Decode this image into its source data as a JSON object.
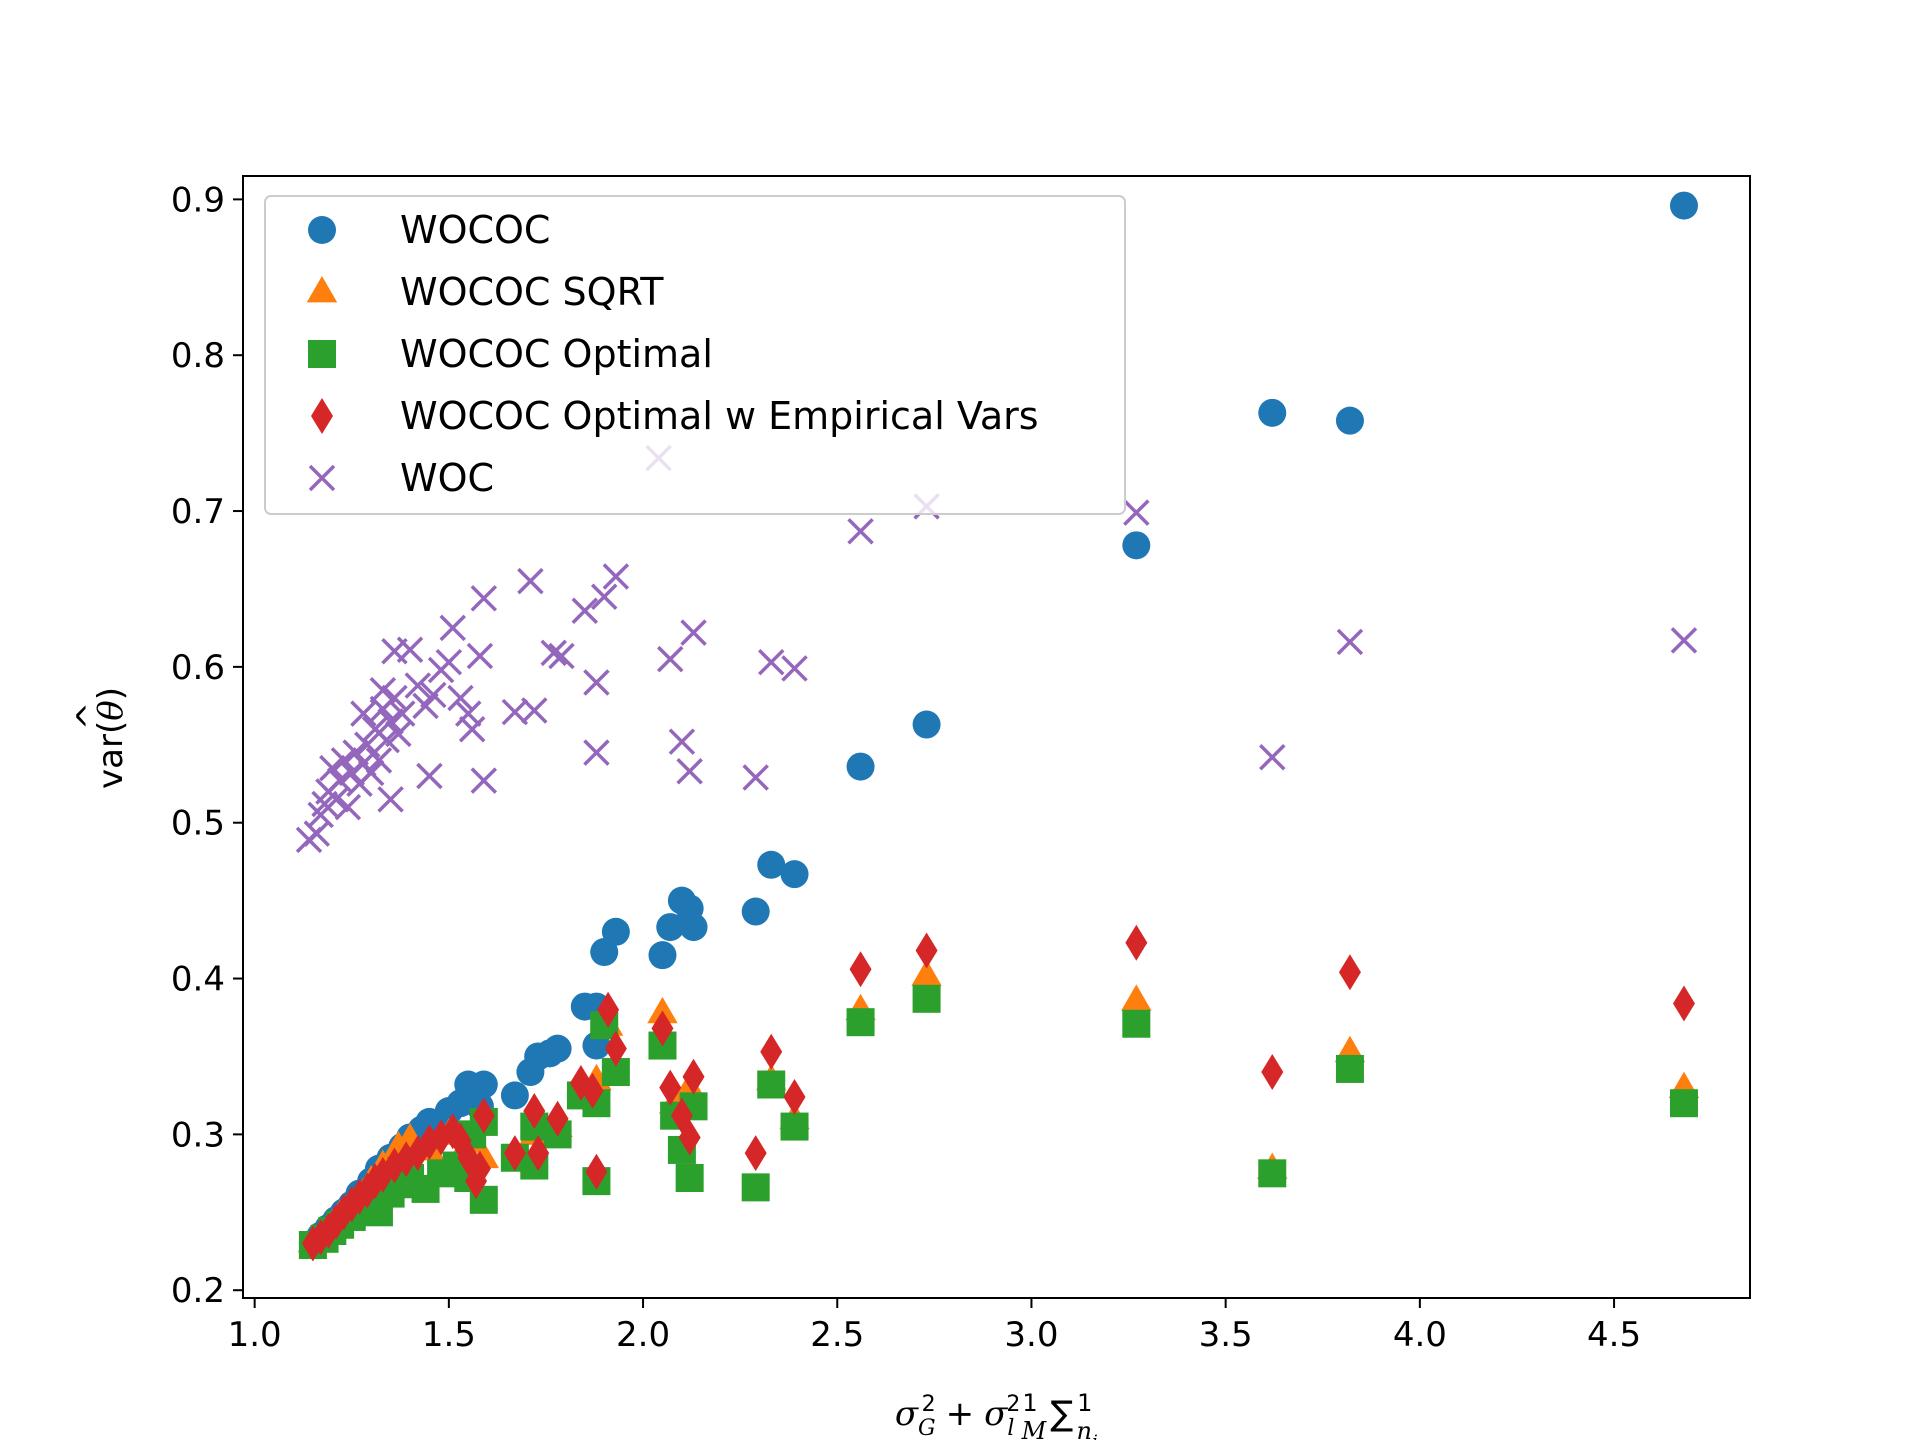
{
  "chart_data": {
    "type": "scatter",
    "xlabel": {
      "sigma": "σ",
      "sub_G": "G",
      "sup_2": "2",
      "plus": "+",
      "sub_l": "l",
      "one": "1",
      "M": "M",
      "sum": "∑",
      "n": "n",
      "sub_j": "j"
    },
    "ylabel": {
      "prefix": "var(",
      "theta": "θ",
      "hat": "^",
      "suffix": ")"
    },
    "xlim": [
      0.97,
      4.85
    ],
    "ylim": [
      0.195,
      0.915
    ],
    "xticks": [
      "1.0",
      "1.5",
      "2.0",
      "2.5",
      "3.0",
      "3.5",
      "4.0",
      "4.5"
    ],
    "xtick_values": [
      1.0,
      1.5,
      2.0,
      2.5,
      3.0,
      3.5,
      4.0,
      4.5
    ],
    "yticks": [
      "0.2",
      "0.3",
      "0.4",
      "0.5",
      "0.6",
      "0.7",
      "0.8",
      "0.9"
    ],
    "ytick_values": [
      0.2,
      0.3,
      0.4,
      0.5,
      0.6,
      0.7,
      0.8,
      0.9
    ],
    "grid": false,
    "legend_position": "top-left",
    "series": [
      {
        "name": "WOCOC",
        "marker": "circle",
        "color": "#1f77b4",
        "points": [
          [
            1.15,
            0.23
          ],
          [
            1.17,
            0.235
          ],
          [
            1.19,
            0.24
          ],
          [
            1.21,
            0.245
          ],
          [
            1.23,
            0.25
          ],
          [
            1.25,
            0.255
          ],
          [
            1.27,
            0.262
          ],
          [
            1.3,
            0.27
          ],
          [
            1.32,
            0.278
          ],
          [
            1.35,
            0.285
          ],
          [
            1.38,
            0.292
          ],
          [
            1.4,
            0.298
          ],
          [
            1.43,
            0.303
          ],
          [
            1.45,
            0.308
          ],
          [
            1.48,
            0.305
          ],
          [
            1.5,
            0.315
          ],
          [
            1.53,
            0.32
          ],
          [
            1.55,
            0.332
          ],
          [
            1.59,
            0.332
          ],
          [
            1.58,
            0.318
          ],
          [
            1.67,
            0.325
          ],
          [
            1.71,
            0.34
          ],
          [
            1.73,
            0.35
          ],
          [
            1.76,
            0.352
          ],
          [
            1.78,
            0.355
          ],
          [
            1.85,
            0.382
          ],
          [
            1.88,
            0.382
          ],
          [
            1.88,
            0.357
          ],
          [
            1.9,
            0.417
          ],
          [
            1.93,
            0.43
          ],
          [
            2.05,
            0.415
          ],
          [
            2.07,
            0.433
          ],
          [
            2.1,
            0.45
          ],
          [
            2.12,
            0.445
          ],
          [
            2.13,
            0.433
          ],
          [
            2.29,
            0.443
          ],
          [
            2.33,
            0.473
          ],
          [
            2.39,
            0.467
          ],
          [
            2.56,
            0.536
          ],
          [
            2.73,
            0.563
          ],
          [
            3.27,
            0.678
          ],
          [
            3.62,
            0.763
          ],
          [
            3.82,
            0.758
          ],
          [
            4.68,
            0.896
          ]
        ]
      },
      {
        "name": "WOCOC SQRT",
        "marker": "triangle",
        "color": "#ff7f0e",
        "points": [
          [
            1.15,
            0.231
          ],
          [
            1.18,
            0.236
          ],
          [
            1.2,
            0.242
          ],
          [
            1.22,
            0.248
          ],
          [
            1.25,
            0.254
          ],
          [
            1.28,
            0.262
          ],
          [
            1.3,
            0.27
          ],
          [
            1.33,
            0.28
          ],
          [
            1.37,
            0.292
          ],
          [
            1.4,
            0.297
          ],
          [
            1.45,
            0.29
          ],
          [
            1.5,
            0.3
          ],
          [
            1.55,
            0.295
          ],
          [
            1.59,
            0.285
          ],
          [
            1.72,
            0.3
          ],
          [
            1.78,
            0.305
          ],
          [
            1.88,
            0.335
          ],
          [
            1.91,
            0.37
          ],
          [
            2.05,
            0.378
          ],
          [
            2.08,
            0.32
          ],
          [
            2.12,
            0.33
          ],
          [
            2.33,
            0.335
          ],
          [
            2.39,
            0.31
          ],
          [
            2.56,
            0.38
          ],
          [
            2.73,
            0.402
          ],
          [
            3.27,
            0.386
          ],
          [
            3.62,
            0.278
          ],
          [
            3.82,
            0.353
          ],
          [
            4.68,
            0.33
          ]
        ]
      },
      {
        "name": "WOCOC Optimal",
        "marker": "square",
        "color": "#2ca02c",
        "points": [
          [
            1.15,
            0.229
          ],
          [
            1.18,
            0.233
          ],
          [
            1.2,
            0.238
          ],
          [
            1.22,
            0.242
          ],
          [
            1.25,
            0.247
          ],
          [
            1.27,
            0.252
          ],
          [
            1.3,
            0.255
          ],
          [
            1.32,
            0.25
          ],
          [
            1.35,
            0.262
          ],
          [
            1.38,
            0.268
          ],
          [
            1.4,
            0.272
          ],
          [
            1.44,
            0.265
          ],
          [
            1.48,
            0.275
          ],
          [
            1.52,
            0.28
          ],
          [
            1.55,
            0.272
          ],
          [
            1.59,
            0.258
          ],
          [
            1.56,
            0.3
          ],
          [
            1.59,
            0.308
          ],
          [
            1.67,
            0.285
          ],
          [
            1.72,
            0.28
          ],
          [
            1.72,
            0.305
          ],
          [
            1.78,
            0.3
          ],
          [
            1.84,
            0.325
          ],
          [
            1.88,
            0.32
          ],
          [
            1.88,
            0.27
          ],
          [
            1.9,
            0.37
          ],
          [
            1.93,
            0.34
          ],
          [
            2.05,
            0.357
          ],
          [
            2.08,
            0.312
          ],
          [
            2.1,
            0.29
          ],
          [
            2.12,
            0.272
          ],
          [
            2.13,
            0.318
          ],
          [
            2.29,
            0.266
          ],
          [
            2.33,
            0.332
          ],
          [
            2.39,
            0.305
          ],
          [
            2.56,
            0.372
          ],
          [
            2.73,
            0.387
          ],
          [
            3.27,
            0.371
          ],
          [
            3.62,
            0.275
          ],
          [
            3.82,
            0.342
          ],
          [
            4.68,
            0.32
          ]
        ]
      },
      {
        "name": "WOCOC Optimal w Empirical Vars",
        "marker": "diamond",
        "color": "#d62728",
        "points": [
          [
            1.15,
            0.23
          ],
          [
            1.17,
            0.234
          ],
          [
            1.19,
            0.238
          ],
          [
            1.21,
            0.244
          ],
          [
            1.23,
            0.25
          ],
          [
            1.25,
            0.255
          ],
          [
            1.27,
            0.26
          ],
          [
            1.29,
            0.264
          ],
          [
            1.31,
            0.27
          ],
          [
            1.33,
            0.274
          ],
          [
            1.36,
            0.28
          ],
          [
            1.39,
            0.284
          ],
          [
            1.42,
            0.288
          ],
          [
            1.45,
            0.295
          ],
          [
            1.48,
            0.298
          ],
          [
            1.51,
            0.302
          ],
          [
            1.53,
            0.296
          ],
          [
            1.55,
            0.285
          ],
          [
            1.58,
            0.278
          ],
          [
            1.59,
            0.312
          ],
          [
            1.57,
            0.27
          ],
          [
            1.67,
            0.288
          ],
          [
            1.72,
            0.315
          ],
          [
            1.73,
            0.288
          ],
          [
            1.78,
            0.31
          ],
          [
            1.84,
            0.333
          ],
          [
            1.87,
            0.328
          ],
          [
            1.88,
            0.276
          ],
          [
            1.91,
            0.38
          ],
          [
            1.93,
            0.355
          ],
          [
            2.05,
            0.368
          ],
          [
            2.07,
            0.33
          ],
          [
            2.1,
            0.312
          ],
          [
            2.12,
            0.298
          ],
          [
            2.13,
            0.337
          ],
          [
            2.29,
            0.288
          ],
          [
            2.33,
            0.353
          ],
          [
            2.39,
            0.324
          ],
          [
            2.56,
            0.406
          ],
          [
            2.73,
            0.418
          ],
          [
            3.27,
            0.423
          ],
          [
            3.62,
            0.34
          ],
          [
            3.82,
            0.404
          ],
          [
            4.68,
            0.384
          ]
        ]
      },
      {
        "name": "WOC",
        "marker": "x",
        "color": "#9467bd",
        "points": [
          [
            1.14,
            0.489
          ],
          [
            1.16,
            0.493
          ],
          [
            1.17,
            0.505
          ],
          [
            1.18,
            0.512
          ],
          [
            1.19,
            0.52
          ],
          [
            1.2,
            0.535
          ],
          [
            1.21,
            0.515
          ],
          [
            1.22,
            0.527
          ],
          [
            1.23,
            0.54
          ],
          [
            1.24,
            0.51
          ],
          [
            1.25,
            0.532
          ],
          [
            1.26,
            0.545
          ],
          [
            1.27,
            0.525
          ],
          [
            1.28,
            0.538
          ],
          [
            1.29,
            0.55
          ],
          [
            1.3,
            0.532
          ],
          [
            1.31,
            0.56
          ],
          [
            1.32,
            0.54
          ],
          [
            1.33,
            0.573
          ],
          [
            1.34,
            0.553
          ],
          [
            1.35,
            0.565
          ],
          [
            1.36,
            0.58
          ],
          [
            1.37,
            0.557
          ],
          [
            1.38,
            0.57
          ],
          [
            1.33,
            0.585
          ],
          [
            1.28,
            0.57
          ],
          [
            1.36,
            0.61
          ],
          [
            1.4,
            0.611
          ],
          [
            1.42,
            0.588
          ],
          [
            1.44,
            0.575
          ],
          [
            1.46,
            0.582
          ],
          [
            1.48,
            0.598
          ],
          [
            1.5,
            0.603
          ],
          [
            1.51,
            0.625
          ],
          [
            1.53,
            0.58
          ],
          [
            1.55,
            0.57
          ],
          [
            1.56,
            0.56
          ],
          [
            1.58,
            0.607
          ],
          [
            1.59,
            0.644
          ],
          [
            1.59,
            0.527
          ],
          [
            1.45,
            0.53
          ],
          [
            1.35,
            0.515
          ],
          [
            1.67,
            0.571
          ],
          [
            1.72,
            0.572
          ],
          [
            1.71,
            0.655
          ],
          [
            1.77,
            0.609
          ],
          [
            1.79,
            0.607
          ],
          [
            1.85,
            0.636
          ],
          [
            1.88,
            0.59
          ],
          [
            1.88,
            0.545
          ],
          [
            1.9,
            0.645
          ],
          [
            1.93,
            0.658
          ],
          [
            2.04,
            0.734
          ],
          [
            2.07,
            0.605
          ],
          [
            2.1,
            0.552
          ],
          [
            2.12,
            0.533
          ],
          [
            2.13,
            0.622
          ],
          [
            2.29,
            0.529
          ],
          [
            2.33,
            0.603
          ],
          [
            2.39,
            0.599
          ],
          [
            2.56,
            0.687
          ],
          [
            2.73,
            0.703
          ],
          [
            3.27,
            0.699
          ],
          [
            3.62,
            0.542
          ],
          [
            3.82,
            0.616
          ],
          [
            4.68,
            0.617
          ]
        ]
      }
    ]
  }
}
